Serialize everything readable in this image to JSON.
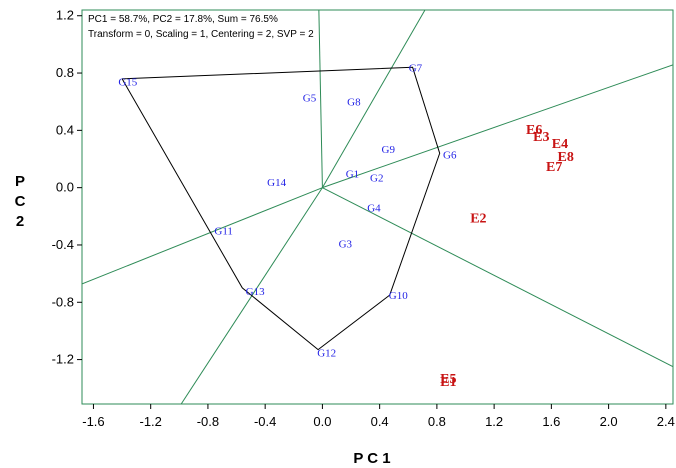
{
  "chart_data": {
    "type": "scatter",
    "info_lines": [
      "PC1 = 58.7%, PC2 = 17.8%, Sum = 76.5%",
      "Transform = 0, Scaling = 1, Centering = 2, SVP = 2"
    ],
    "xlabel": "P C 1",
    "ylabel": "P C 2",
    "xlim": [
      -1.68,
      2.45
    ],
    "ylim": [
      -1.51,
      1.24
    ],
    "x_ticks": [
      -1.6,
      -1.2,
      -0.8,
      -0.4,
      0.0,
      0.4,
      0.8,
      1.2,
      1.6,
      2.0,
      2.4
    ],
    "x_tick_labels": [
      "-1.6",
      "-1.2",
      "-0.8",
      "-0.4",
      "0.0",
      "0.4",
      "0.8",
      "1.2",
      "1.6",
      "2.0",
      "2.4"
    ],
    "y_ticks": [
      -1.2,
      -0.8,
      -0.4,
      0.0,
      0.4,
      0.8,
      1.2
    ],
    "y_tick_labels": [
      "-1.2",
      "-0.8",
      "-0.4",
      "0.0",
      "0.4",
      "0.8",
      "1.2"
    ],
    "genotypes": [
      {
        "name": "G1",
        "x": 0.21,
        "y": 0.1
      },
      {
        "name": "G2",
        "x": 0.38,
        "y": 0.07
      },
      {
        "name": "G3",
        "x": 0.16,
        "y": -0.39
      },
      {
        "name": "G4",
        "x": 0.36,
        "y": -0.14
      },
      {
        "name": "G5",
        "x": -0.09,
        "y": 0.63
      },
      {
        "name": "G6",
        "x": 0.89,
        "y": 0.23
      },
      {
        "name": "G7",
        "x": 0.65,
        "y": 0.84
      },
      {
        "name": "G8",
        "x": 0.22,
        "y": 0.6
      },
      {
        "name": "G9",
        "x": 0.46,
        "y": 0.27
      },
      {
        "name": "G10",
        "x": 0.53,
        "y": -0.75
      },
      {
        "name": "G11",
        "x": -0.69,
        "y": -0.3
      },
      {
        "name": "G12",
        "x": 0.03,
        "y": -1.15
      },
      {
        "name": "G13",
        "x": -0.47,
        "y": -0.72
      },
      {
        "name": "G14",
        "x": -0.32,
        "y": 0.04
      },
      {
        "name": "G15",
        "x": -1.36,
        "y": 0.74
      }
    ],
    "environments": [
      {
        "name": "E1",
        "x": 0.88,
        "y": -1.35
      },
      {
        "name": "E2",
        "x": 1.09,
        "y": -0.21
      },
      {
        "name": "E3",
        "x": 1.53,
        "y": 0.36
      },
      {
        "name": "E4",
        "x": 1.66,
        "y": 0.31
      },
      {
        "name": "E5",
        "x": 0.88,
        "y": -1.33
      },
      {
        "name": "E6",
        "x": 1.48,
        "y": 0.41
      },
      {
        "name": "E7",
        "x": 1.62,
        "y": 0.15
      },
      {
        "name": "E8",
        "x": 1.7,
        "y": 0.22
      }
    ],
    "hull": [
      [
        -1.4,
        0.76
      ],
      [
        0.63,
        0.84
      ],
      [
        0.82,
        0.24
      ],
      [
        0.47,
        -0.75
      ],
      [
        -0.03,
        -1.13
      ],
      [
        -0.56,
        -0.7
      ],
      [
        -1.4,
        0.76
      ]
    ],
    "rays": [
      [
        -0.03,
        1.5
      ],
      [
        1.0,
        0.35
      ],
      [
        1.0,
        -0.51
      ],
      [
        1.0,
        1.73
      ],
      [
        -1.0,
        -1.53
      ],
      [
        -1.0,
        -0.4
      ]
    ],
    "colors": {
      "plot_border": "#2e8b57",
      "hull": "#000000",
      "rays": "#2e8b57",
      "genotypes": "#2323e6",
      "environments": "#c81414"
    }
  }
}
